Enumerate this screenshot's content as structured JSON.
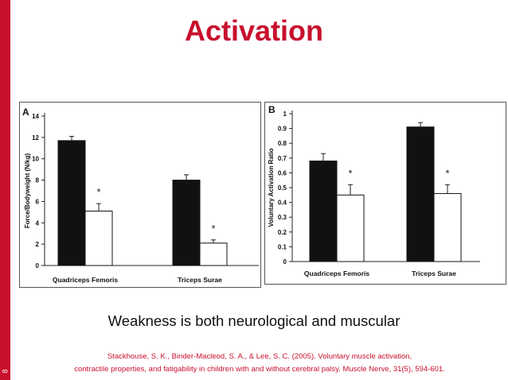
{
  "slide": {
    "title": "Activation",
    "slide_number": "8",
    "caption": "Weakness is both neurological and muscular",
    "citation_line1": "Stackhouse, S. K., Binder-Macleod, S. A., & Lee, S. C. (2005). Voluntary muscle activation,",
    "citation_line2": "contractile properties, and fatigability in children with and without cerebral palsy. Muscle Nerve, 31(5), 594-601.",
    "accent_color": "#c8102e"
  },
  "chart_data": [
    {
      "panel_label": "A",
      "type": "bar",
      "ylabel": "Force/Bodyweight (N/kg)",
      "xlabel": "",
      "categories": [
        "Quadriceps Femoris",
        "Triceps Surae"
      ],
      "ylim": [
        0,
        14
      ],
      "yticks": [
        "0",
        "2",
        "4",
        "6",
        "8",
        "10",
        "12",
        "14"
      ],
      "series": [
        {
          "fill": "#111111",
          "values": [
            11.7,
            8.0
          ],
          "error": [
            0.4,
            0.5
          ]
        },
        {
          "fill": "#ffffff",
          "values": [
            5.1,
            2.1
          ],
          "error": [
            0.7,
            0.3
          ]
        }
      ],
      "significance_marker": "*",
      "grid": false
    },
    {
      "panel_label": "B",
      "type": "bar",
      "ylabel": "Voluntary Activation Ratio",
      "xlabel": "",
      "categories": [
        "Quadriceps Femoris",
        "Triceps Surae"
      ],
      "ylim": [
        0,
        1
      ],
      "yticks": [
        "0",
        "0.1",
        "0.2",
        "0.3",
        "0.4",
        "0.5",
        "0.6",
        "0.7",
        "0.8",
        "0.9",
        "1"
      ],
      "series": [
        {
          "fill": "#111111",
          "values": [
            0.68,
            0.91
          ],
          "error": [
            0.05,
            0.03
          ]
        },
        {
          "fill": "#ffffff",
          "values": [
            0.45,
            0.46
          ],
          "error": [
            0.07,
            0.06
          ]
        }
      ],
      "significance_marker": "*",
      "grid": false
    }
  ]
}
